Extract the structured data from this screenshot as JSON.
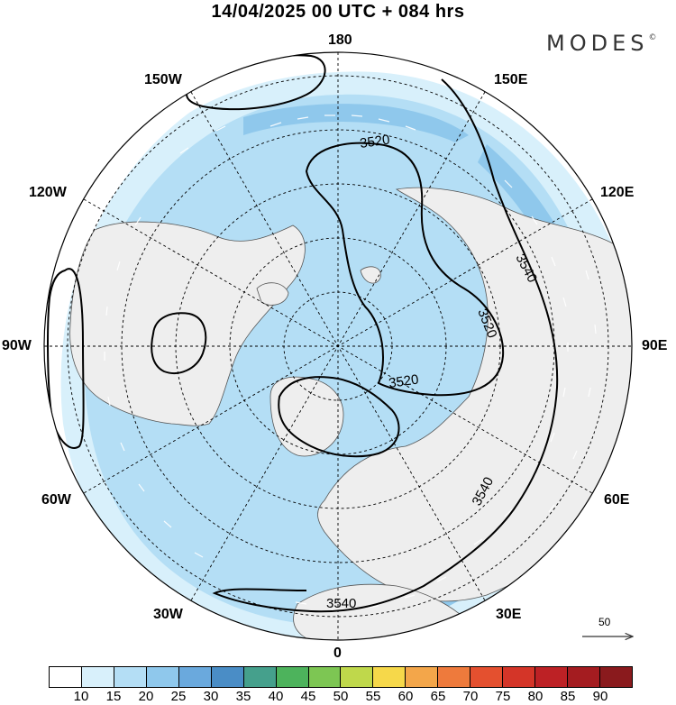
{
  "header": {
    "title": "14/04/2025  00 UTC  + 084 hrs",
    "brand": "MODES"
  },
  "longitude_labels": {
    "l180": "180",
    "l150E": "150E",
    "l120E": "120E",
    "l90E": "90E",
    "l60E": "60E",
    "l30E": "30E",
    "l0": "0",
    "l30W": "30W",
    "l60W": "60W",
    "l90W": "90W",
    "l120W": "120W",
    "l150W": "150W"
  },
  "contours": {
    "c1": "3520",
    "c2": "3540",
    "c3": "3520",
    "c4": "3520",
    "c5": "3540",
    "c6": "3540"
  },
  "reference_vector": {
    "label": "50"
  },
  "colorbar": {
    "labels": [
      "10",
      "15",
      "20",
      "25",
      "30",
      "35",
      "40",
      "45",
      "50",
      "55",
      "60",
      "65",
      "70",
      "75",
      "80",
      "85",
      "90"
    ],
    "colors": [
      "#ffffff",
      "#d8f0fb",
      "#b4def5",
      "#8fc8ec",
      "#6aa9dd",
      "#4a8dc6",
      "#45a08c",
      "#4db35c",
      "#7dc653",
      "#bfd84b",
      "#f6d84a",
      "#f3a64a",
      "#ee7a3c",
      "#e4502f",
      "#d43528",
      "#bd2125",
      "#a41c20",
      "#8a1a1d"
    ]
  },
  "map": {
    "ocean": "#ffffff",
    "land": "#eeeeee",
    "coast": "#555555",
    "contour": "#000000"
  }
}
